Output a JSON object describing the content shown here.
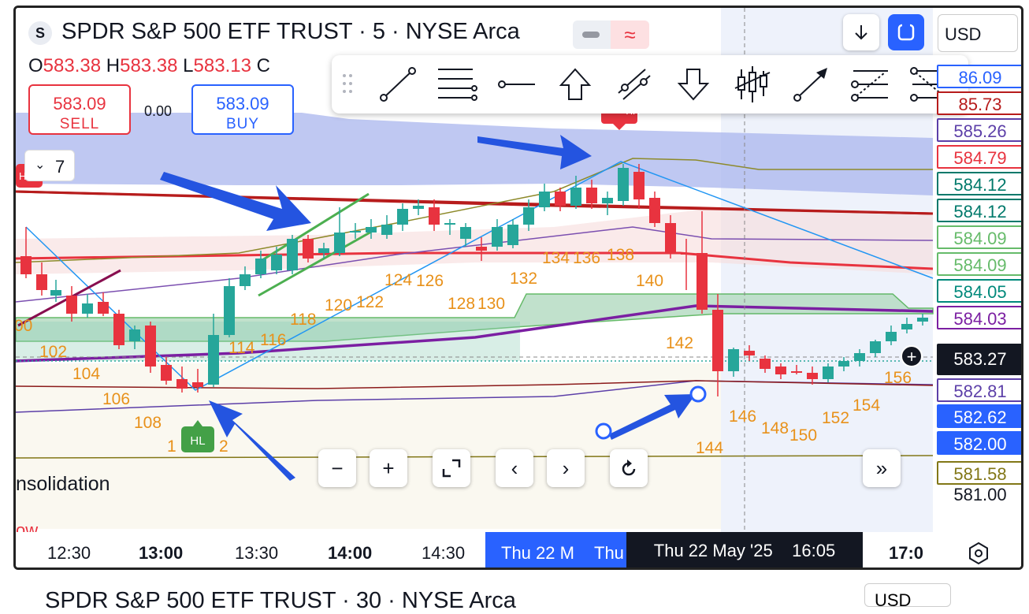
{
  "header": {
    "symbol_badge": "S",
    "title": "SPDR S&P 500 ETF TRUST · 5 · NYSE Arca",
    "ohlc": {
      "o_label": "O",
      "o": "583.38",
      "h_label": "H",
      "h": "583.38",
      "l_label": "L",
      "l": "583.13",
      "c_label": "C"
    },
    "currency": "USD"
  },
  "trade": {
    "sell_price": "583.09",
    "sell_label": "SELL",
    "buy_price": "583.09",
    "buy_label": "BUY",
    "spread": "0.00"
  },
  "interval_badge": "7",
  "price_labels": [
    {
      "text": "86.09",
      "color": "#2962ff",
      "bg": "#ffffff",
      "border": "#2962ff"
    },
    {
      "text": "85.73",
      "color": "#b71c1c",
      "bg": "#ffffff",
      "border": "#b71c1c"
    },
    {
      "text": "585.26",
      "color": "#5c3fa8",
      "bg": "#ffffff",
      "border": "#5c3fa8"
    },
    {
      "text": "584.79",
      "color": "#e8333f",
      "bg": "#ffffff",
      "border": "#e8333f"
    },
    {
      "text": "584.12",
      "color": "#00796b",
      "bg": "#ffffff",
      "border": "#00796b"
    },
    {
      "text": "584.12",
      "color": "#00796b",
      "bg": "#ffffff",
      "border": "#00796b"
    },
    {
      "text": "584.09",
      "color": "#66bb6a",
      "bg": "#ffffff",
      "border": "#66bb6a"
    },
    {
      "text": "584.09",
      "color": "#66bb6a",
      "bg": "#ffffff",
      "border": "#66bb6a"
    },
    {
      "text": "584.05",
      "color": "#00897b",
      "bg": "#ffffff",
      "border": "#00897b"
    },
    {
      "text": "584.03",
      "color": "#7b1fa2",
      "bg": "#ffffff",
      "border": "#7b1fa2"
    },
    {
      "text": "583.27",
      "color": "#ffffff",
      "bg": "#131722",
      "border": "#131722"
    },
    {
      "text": "582.81",
      "color": "#5c3fa8",
      "bg": "#ffffff",
      "border": "#5c3fa8"
    },
    {
      "text": "582.62",
      "color": "#ffffff",
      "bg": "#2962ff",
      "border": "#2962ff"
    },
    {
      "text": "582.00",
      "color": "#ffffff",
      "bg": "#2962ff",
      "border": "#2962ff"
    },
    {
      "text": "581.58",
      "color": "#827717",
      "bg": "#ffffff",
      "border": "#827717"
    },
    {
      "text": "581.00",
      "color": "#131722",
      "bg": "transparent",
      "border": "transparent"
    }
  ],
  "time_axis": {
    "labels": [
      "12:30",
      "13:00",
      "13:30",
      "14:00",
      "14:30",
      "17:0"
    ],
    "bold": [
      false,
      true,
      false,
      true,
      false,
      true
    ],
    "highlight_1": "Thu 22 M",
    "highlight_2": "Thu",
    "crosshair_label": "Thu 22 May '25    16:05"
  },
  "wave_numbers": [
    "00",
    "102",
    "104",
    "106",
    "108",
    "1",
    "2",
    "114",
    "116",
    "118",
    "120",
    "122",
    "124",
    "126",
    "128",
    "130",
    "132",
    "134",
    "136",
    "138",
    "140",
    "142",
    "144",
    "146",
    "148",
    "150",
    "152",
    "154",
    "156"
  ],
  "badges": {
    "hl": "HL",
    "hh": "HH",
    "lh": "LH",
    "h": "H"
  },
  "consolidation_text": "nsolidation",
  "low_text": "ow",
  "second_pane": {
    "title": "SPDR S&P 500 ETF TRUST · 30 · NYSE Arca",
    "currency": "USD"
  },
  "drawing_tools": [
    "handle-icon",
    "trend-line-icon",
    "horizontal-rays-icon",
    "horizontal-line-icon",
    "arrow-up-icon",
    "parallel-channel-icon",
    "arrow-down-icon",
    "bars-pattern-icon",
    "arrow-line-icon",
    "fib-retracement-icon",
    "fib-extension-icon"
  ],
  "colors": {
    "up": "#26a69a",
    "down": "#e8333f",
    "accent": "#2962ff"
  }
}
